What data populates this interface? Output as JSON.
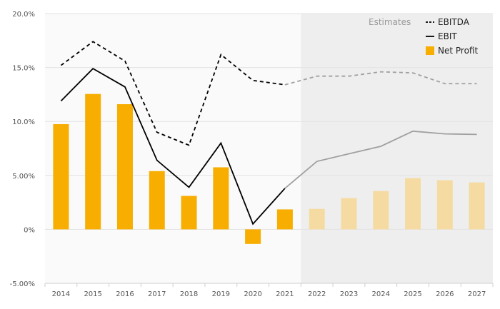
{
  "chart_data": {
    "type": "bar",
    "categories": [
      "2014",
      "2015",
      "2016",
      "2017",
      "2018",
      "2019",
      "2020",
      "2021",
      "2022",
      "2023",
      "2024",
      "2025",
      "2026",
      "2027"
    ],
    "estimate_start_index": 8,
    "estimates_label": "Estimates",
    "ylim": [
      -5,
      20
    ],
    "yticks": [
      {
        "value": 20,
        "label": "20.0%"
      },
      {
        "value": 15,
        "label": "15.0%"
      },
      {
        "value": 10,
        "label": "10.0%"
      },
      {
        "value": 5,
        "label": "5.00%"
      },
      {
        "value": 0,
        "label": "0%"
      },
      {
        "value": -5,
        "label": "-5.00%"
      }
    ],
    "grid": true,
    "legend_position": "top-right",
    "series": [
      {
        "name": "EBITDA",
        "type": "line",
        "style": "dashed",
        "color": "#000000",
        "estimate_color": "#a0a0a0",
        "values": [
          15.2,
          17.4,
          15.6,
          9.0,
          7.8,
          16.2,
          13.8,
          13.4,
          14.2,
          14.2,
          14.6,
          14.5,
          13.5,
          13.5
        ]
      },
      {
        "name": "EBIT",
        "type": "line",
        "style": "solid",
        "color": "#000000",
        "estimate_color": "#a0a0a0",
        "values": [
          11.9,
          14.9,
          13.2,
          6.4,
          3.9,
          8.0,
          0.5,
          3.8,
          6.3,
          7.0,
          7.7,
          9.1,
          8.85,
          8.8
        ]
      },
      {
        "name": "Net Profit",
        "type": "bar",
        "color": "#f7ae00",
        "estimate_color": "#f5dba2",
        "values": [
          9.75,
          12.55,
          11.6,
          5.4,
          3.1,
          5.75,
          -1.35,
          1.85,
          1.9,
          2.9,
          3.55,
          4.75,
          4.55,
          4.35
        ]
      }
    ]
  }
}
